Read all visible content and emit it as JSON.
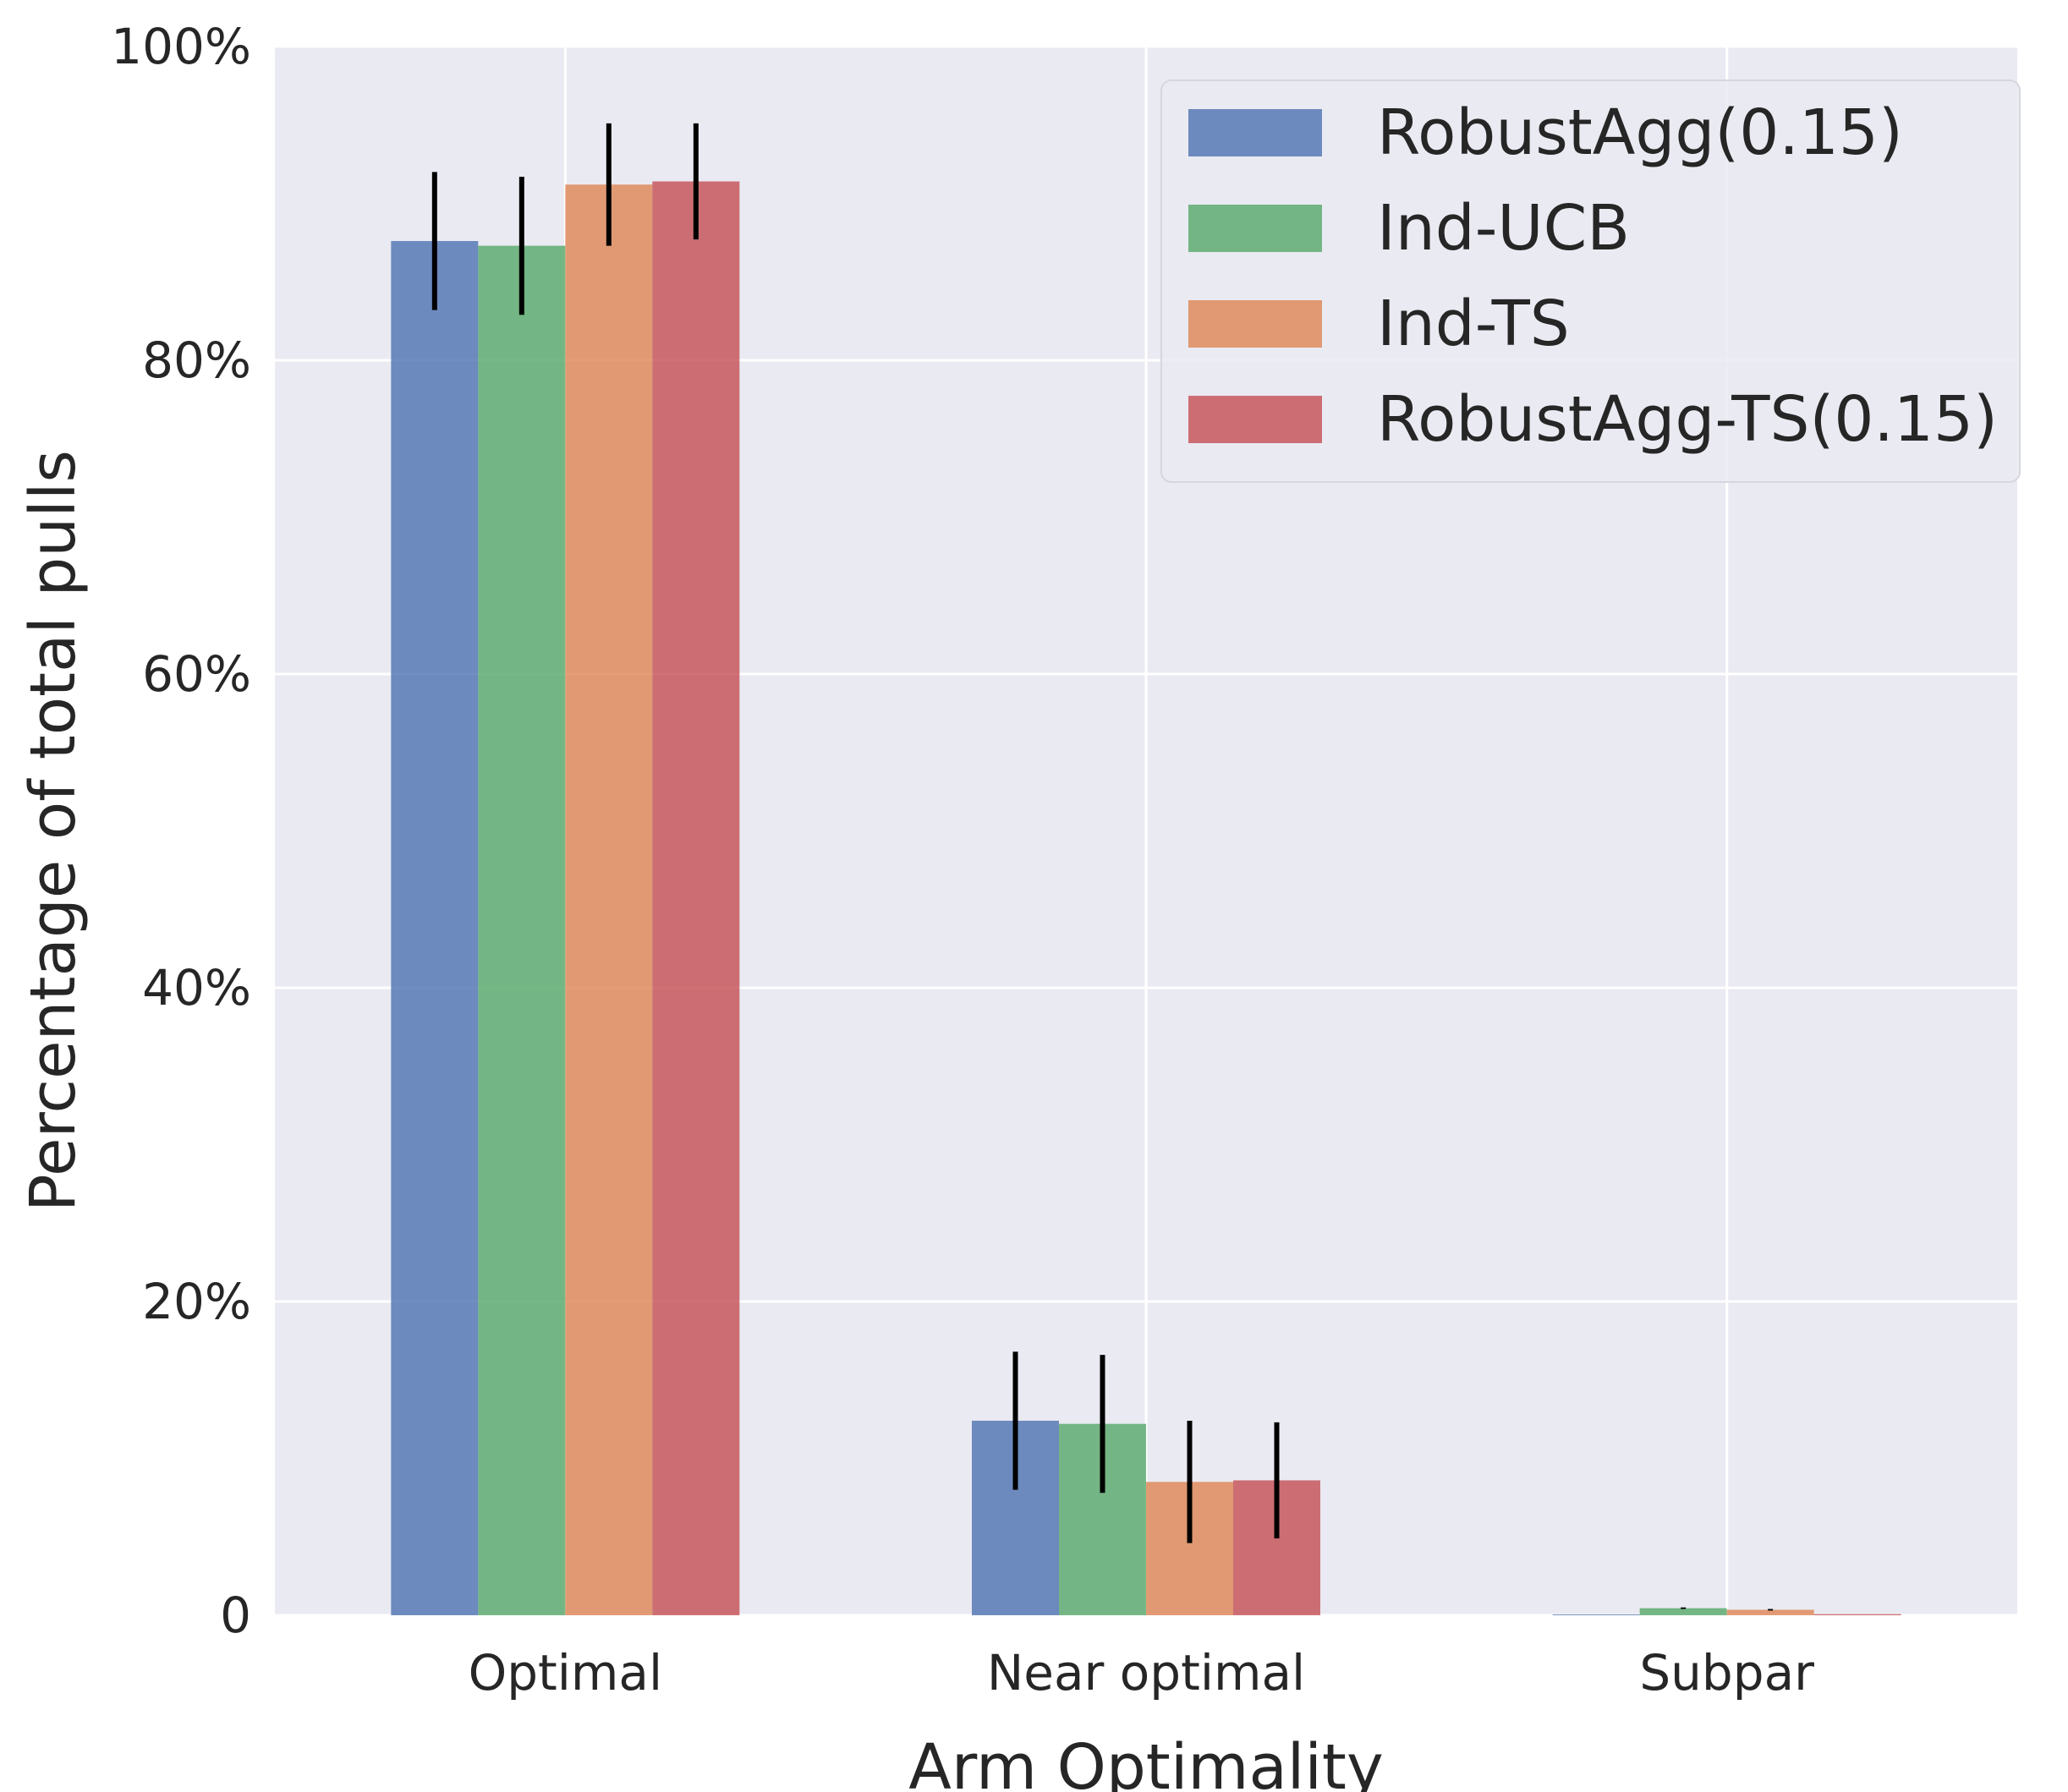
{
  "chart_data": {
    "type": "bar",
    "title": "",
    "xlabel": "Arm Optimality",
    "ylabel": "Percentage of total pulls",
    "categories": [
      "Optimal",
      "Near optimal",
      "Subpar"
    ],
    "ylim": [
      0,
      100
    ],
    "yticks": [
      0,
      20,
      40,
      60,
      80,
      100
    ],
    "ytick_labels": [
      "0",
      "20%",
      "40%",
      "60%",
      "80%",
      "100%"
    ],
    "grid": true,
    "legend_position": "top-right",
    "series": [
      {
        "name": "RobustAgg(0.15)",
        "color": "#4c72b0",
        "values": [
          87.6,
          12.4,
          0.05
        ],
        "errors": [
          4.4,
          4.4,
          0.0
        ]
      },
      {
        "name": "Ind-UCB",
        "color": "#55a868",
        "values": [
          87.3,
          12.2,
          0.45
        ],
        "errors": [
          4.4,
          4.4,
          0.05
        ]
      },
      {
        "name": "Ind-TS",
        "color": "#dd8452",
        "values": [
          91.2,
          8.5,
          0.35
        ],
        "errors": [
          3.9,
          3.9,
          0.05
        ]
      },
      {
        "name": "RobustAgg-TS(0.15)",
        "color": "#c44e52",
        "values": [
          91.4,
          8.6,
          0.07
        ],
        "errors": [
          3.7,
          3.7,
          0.0
        ]
      }
    ]
  }
}
